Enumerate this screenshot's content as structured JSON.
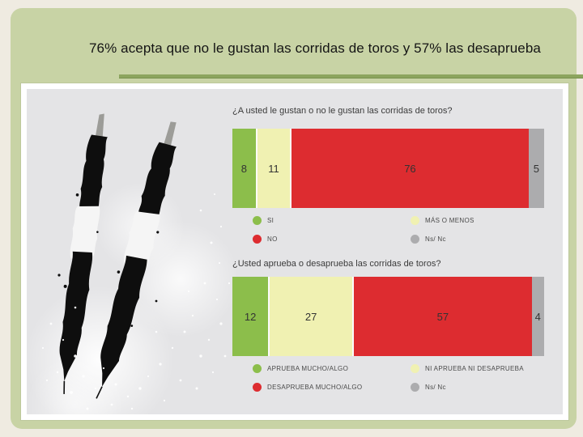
{
  "slide": {
    "title": "76% acepta que no le gustan las corridas de toros y 57% las desaprueba"
  },
  "illustration": {
    "name": "two-ink-banderillas-with-splatter",
    "style": "black ink stencil on light gray with white speckles"
  },
  "colors": {
    "page_background": "#EFEBE1",
    "slide_green": "#C8D3A5",
    "rule_green": "#8CA55E",
    "panel_border": "#FFFFFF",
    "panel_gray": "#E4E4E6",
    "bar_green": "#8CBE4B",
    "bar_yellow": "#F0F1B2",
    "bar_red": "#DD2C30",
    "bar_gray": "#ACACAE",
    "text_dark": "#3B3B3B"
  },
  "chart_data": [
    {
      "type": "bar",
      "orientation": "horizontal",
      "stacked": true,
      "unit": "percent",
      "title": "¿A usted le gustan o no le gustan las corridas de toros?",
      "xlim": [
        0,
        100
      ],
      "legend_columns": 2,
      "legend_position": "below",
      "segments": [
        {
          "label": "SI",
          "value": 8,
          "color": "#8CBE4B"
        },
        {
          "label": "MÁS O MENOS",
          "value": 11,
          "color": "#F0F1B2"
        },
        {
          "label": "NO",
          "value": 76,
          "color": "#DD2C30"
        },
        {
          "label": "Ns/ Nc",
          "value": 5,
          "color": "#ACACAE"
        }
      ]
    },
    {
      "type": "bar",
      "orientation": "horizontal",
      "stacked": true,
      "unit": "percent",
      "title": "¿Usted aprueba o desaprueba las corridas de toros?",
      "xlim": [
        0,
        100
      ],
      "legend_columns": 2,
      "legend_position": "below",
      "segments": [
        {
          "label": "APRUEBA MUCHO/ALGO",
          "value": 12,
          "color": "#8CBE4B"
        },
        {
          "label": "NI APRUEBA NI DESAPRUEBA",
          "value": 27,
          "color": "#F0F1B2"
        },
        {
          "label": "DESAPRUEBA MUCHO/ALGO",
          "value": 57,
          "color": "#DD2C30"
        },
        {
          "label": "Ns/ Nc",
          "value": 4,
          "color": "#ACACAE"
        }
      ]
    }
  ]
}
